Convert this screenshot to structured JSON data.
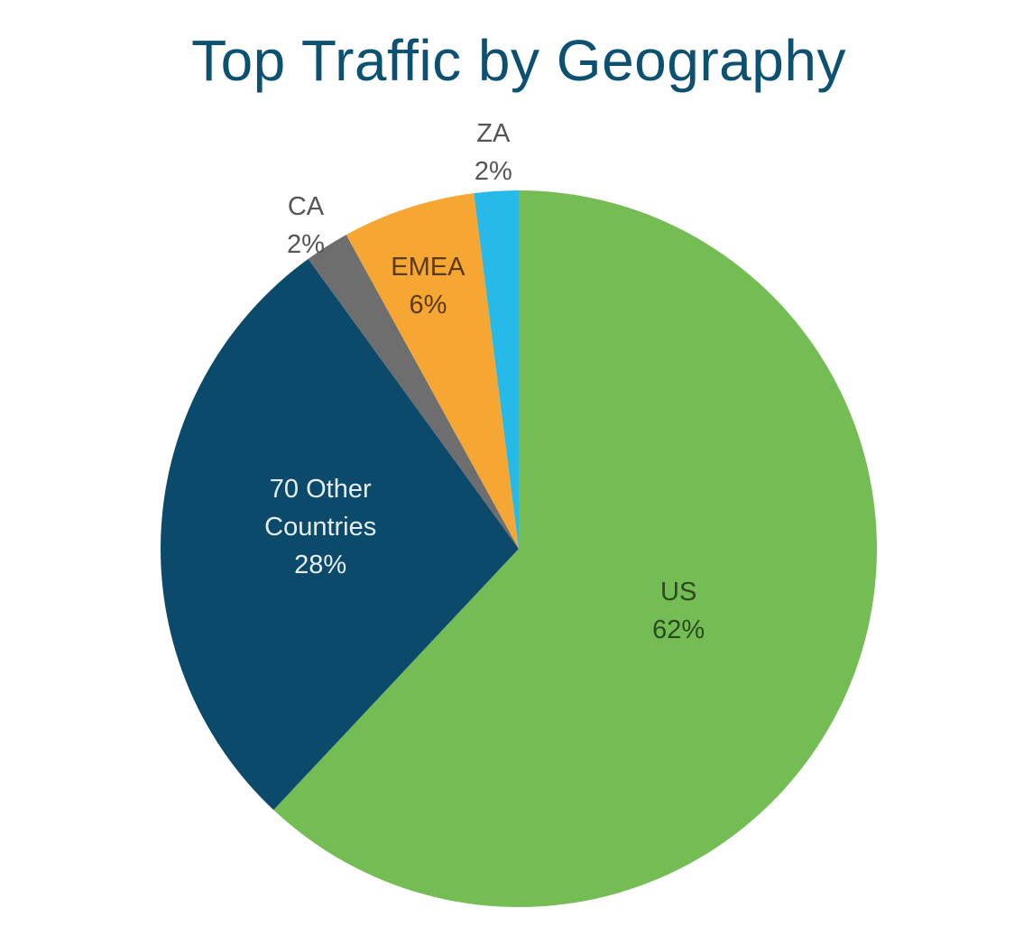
{
  "chart_data": {
    "type": "pie",
    "title": "Top Traffic by Geography",
    "slices": [
      {
        "name": "US",
        "value": 62,
        "label": "62%",
        "color": "#73bd54",
        "label_color": "#2d4a1f"
      },
      {
        "name": "70 Other Countries",
        "name_lines": [
          "70 Other",
          "Countries"
        ],
        "value": 28,
        "label": "28%",
        "color": "#0b4a6b",
        "label_color": "#e6eef3"
      },
      {
        "name": "CA",
        "value": 2,
        "label": "2%",
        "color": "#6e6e6e",
        "label_color": "#555555"
      },
      {
        "name": "EMEA",
        "value": 6,
        "label": "6%",
        "color": "#f6a632",
        "label_color": "#5a3b0e"
      },
      {
        "name": "ZA",
        "value": 2,
        "label": "2%",
        "color": "#27b9e7",
        "label_color": "#555555"
      }
    ]
  }
}
